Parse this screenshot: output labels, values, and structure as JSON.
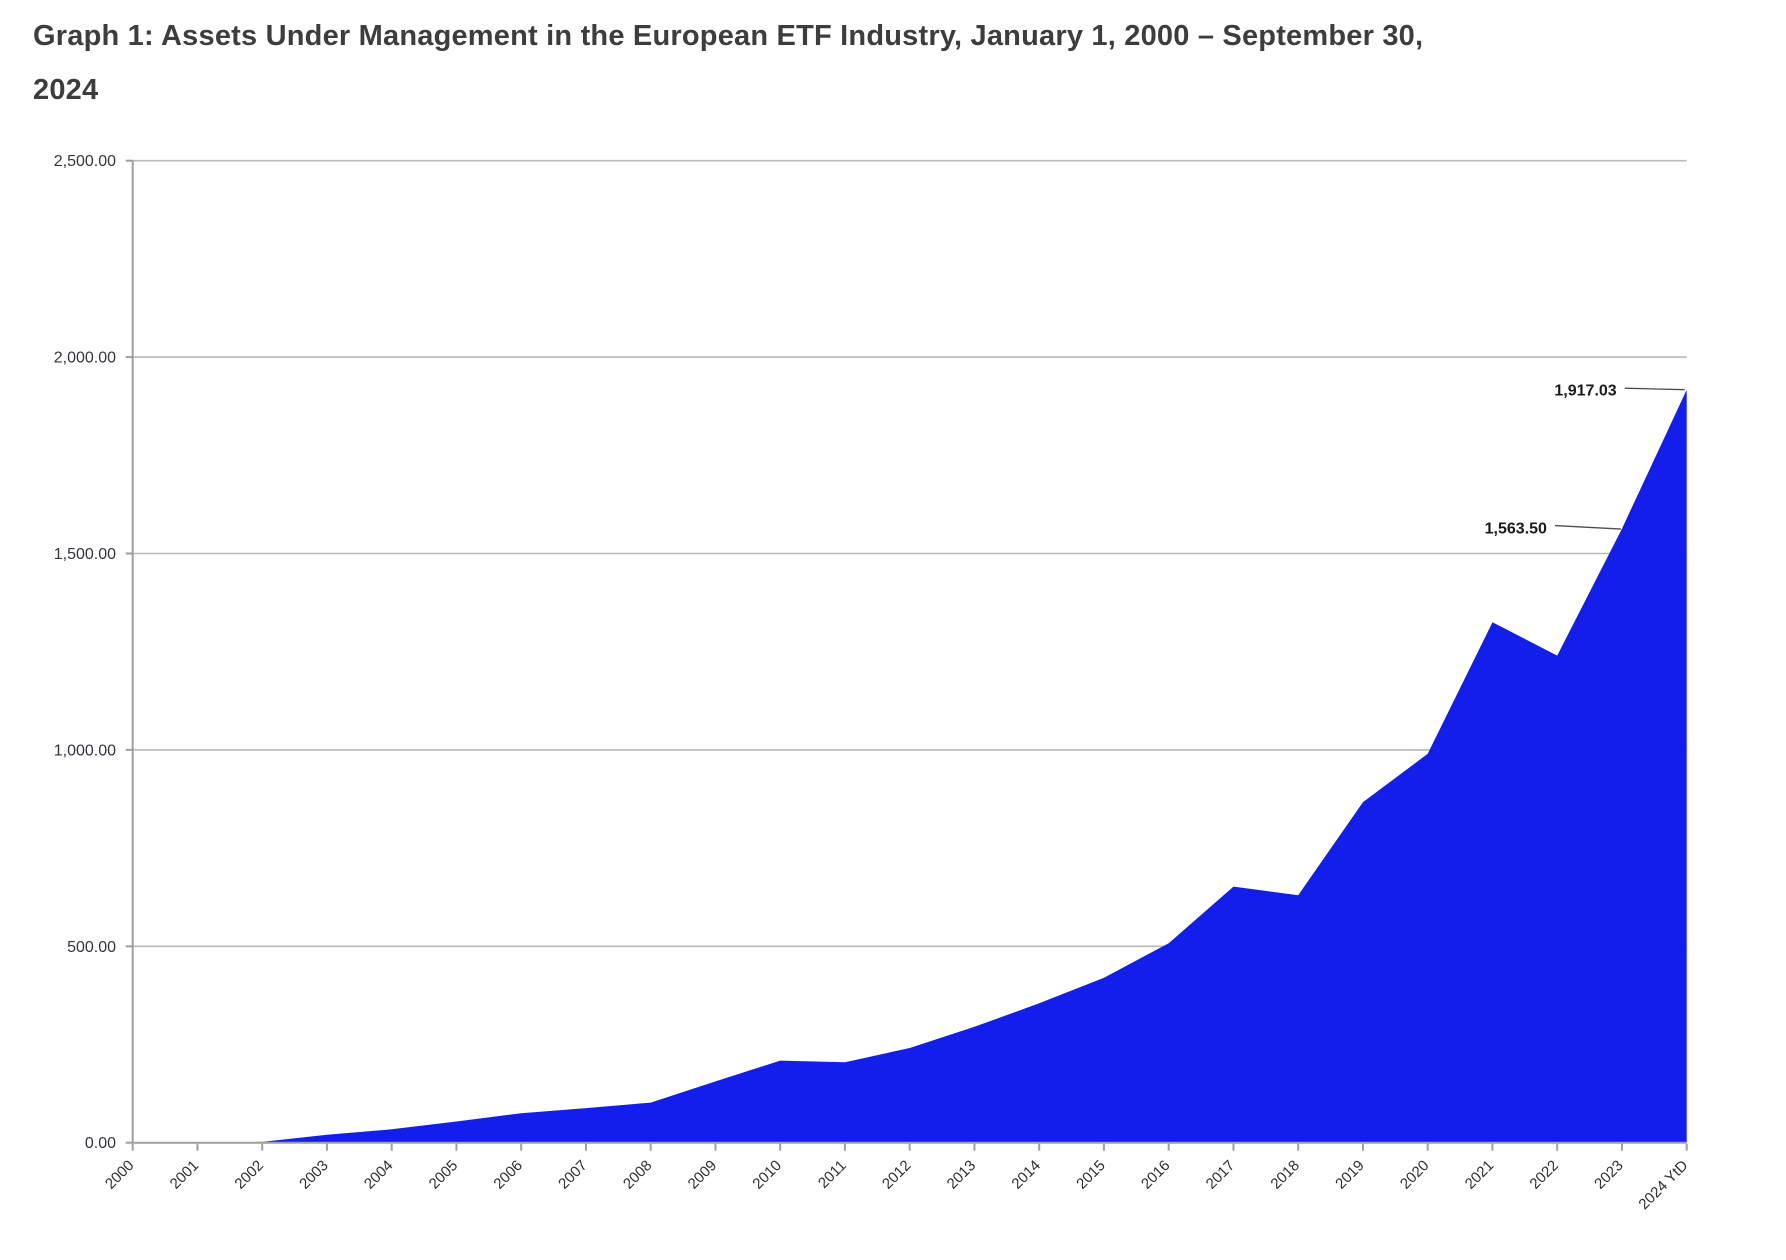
{
  "title_lines": [
    "Graph 1: Assets Under Management in the European ETF Industry, January 1, 2000 – September 30,",
    "2024"
  ],
  "chart_data": {
    "type": "area",
    "title": "Graph 1: Assets Under Management in the European ETF Industry, January 1, 2000 – September 30, 2024",
    "categories": [
      "2000",
      "2001",
      "2002",
      "2003",
      "2004",
      "2005",
      "2006",
      "2007",
      "2008",
      "2009",
      "2010",
      "2011",
      "2012",
      "2013",
      "2014",
      "2015",
      "2016",
      "2017",
      "2018",
      "2019",
      "2020",
      "2021",
      "2022",
      "2023",
      "2024 YtD"
    ],
    "values": [
      0,
      0,
      2,
      20,
      34,
      54,
      75,
      88,
      102,
      156,
      209,
      205,
      241,
      295,
      355,
      420,
      508,
      652,
      630,
      867,
      990,
      1325,
      1240,
      1563.5,
      1917.03
    ],
    "xlabel": "",
    "ylabel": "",
    "ylim": [
      0,
      2500
    ],
    "ytick_interval": 500,
    "ytick_labels": [
      "0.00",
      "500.00",
      "1,000.00",
      "1,500.00",
      "2,000.00",
      "2,500.00"
    ],
    "grid": true,
    "legend": "none",
    "annotations": [
      {
        "text": "1,917.03",
        "category": "2024 YtD",
        "value": 1917.03
      },
      {
        "text": "1,563.50",
        "category": "2023",
        "value": 1563.5
      }
    ],
    "colors": {
      "area": "#141EEB",
      "gridline": "#b9b9b9",
      "axis": "#9f9f9f",
      "y_tick_label": "#333344",
      "x_tick_label": "#2e2e2e",
      "data_label": "#1a1a1a",
      "leader_line": "#4d4d4d",
      "title": "#3d3d3d"
    }
  }
}
